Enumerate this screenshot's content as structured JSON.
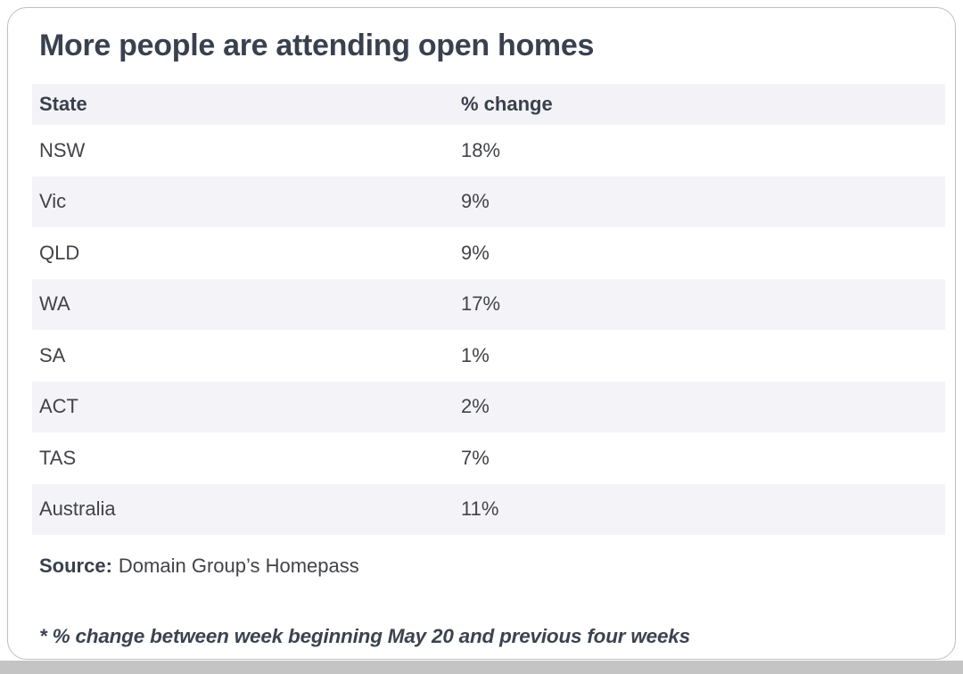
{
  "card": {
    "title": "More people are attending open homes",
    "table": {
      "headers": {
        "state": "State",
        "change": "% change"
      },
      "rows": [
        {
          "state": "NSW",
          "change": "18%"
        },
        {
          "state": "Vic",
          "change": "9%"
        },
        {
          "state": "QLD",
          "change": "9%"
        },
        {
          "state": "WA",
          "change": "17%"
        },
        {
          "state": "SA",
          "change": "1%"
        },
        {
          "state": "ACT",
          "change": "2%"
        },
        {
          "state": "TAS",
          "change": "7%"
        },
        {
          "state": "Australia",
          "change": "11%"
        }
      ]
    },
    "source": {
      "label": "Source:",
      "text": "Domain Group’s Homepass"
    },
    "footnote": "* % change between week beginning May 20 and previous four weeks"
  },
  "colors": {
    "heading_text": "#39414f",
    "body_text": "#414349",
    "header_row_bg": "#f3f3f7",
    "row_alt_bg": "#f4f4f8",
    "card_border": "#bfbfbf",
    "page_bottom_strip": "#c4c4c4"
  },
  "chart_data": {
    "type": "table",
    "title": "More people are attending open homes",
    "columns": [
      "State",
      "% change"
    ],
    "categories": [
      "NSW",
      "Vic",
      "QLD",
      "WA",
      "SA",
      "ACT",
      "TAS",
      "Australia"
    ],
    "values": [
      18,
      9,
      9,
      17,
      1,
      2,
      7,
      11
    ],
    "unit": "%",
    "source": "Domain Group’s Homepass",
    "footnote": "* % change between week beginning May 20 and previous four weeks"
  }
}
